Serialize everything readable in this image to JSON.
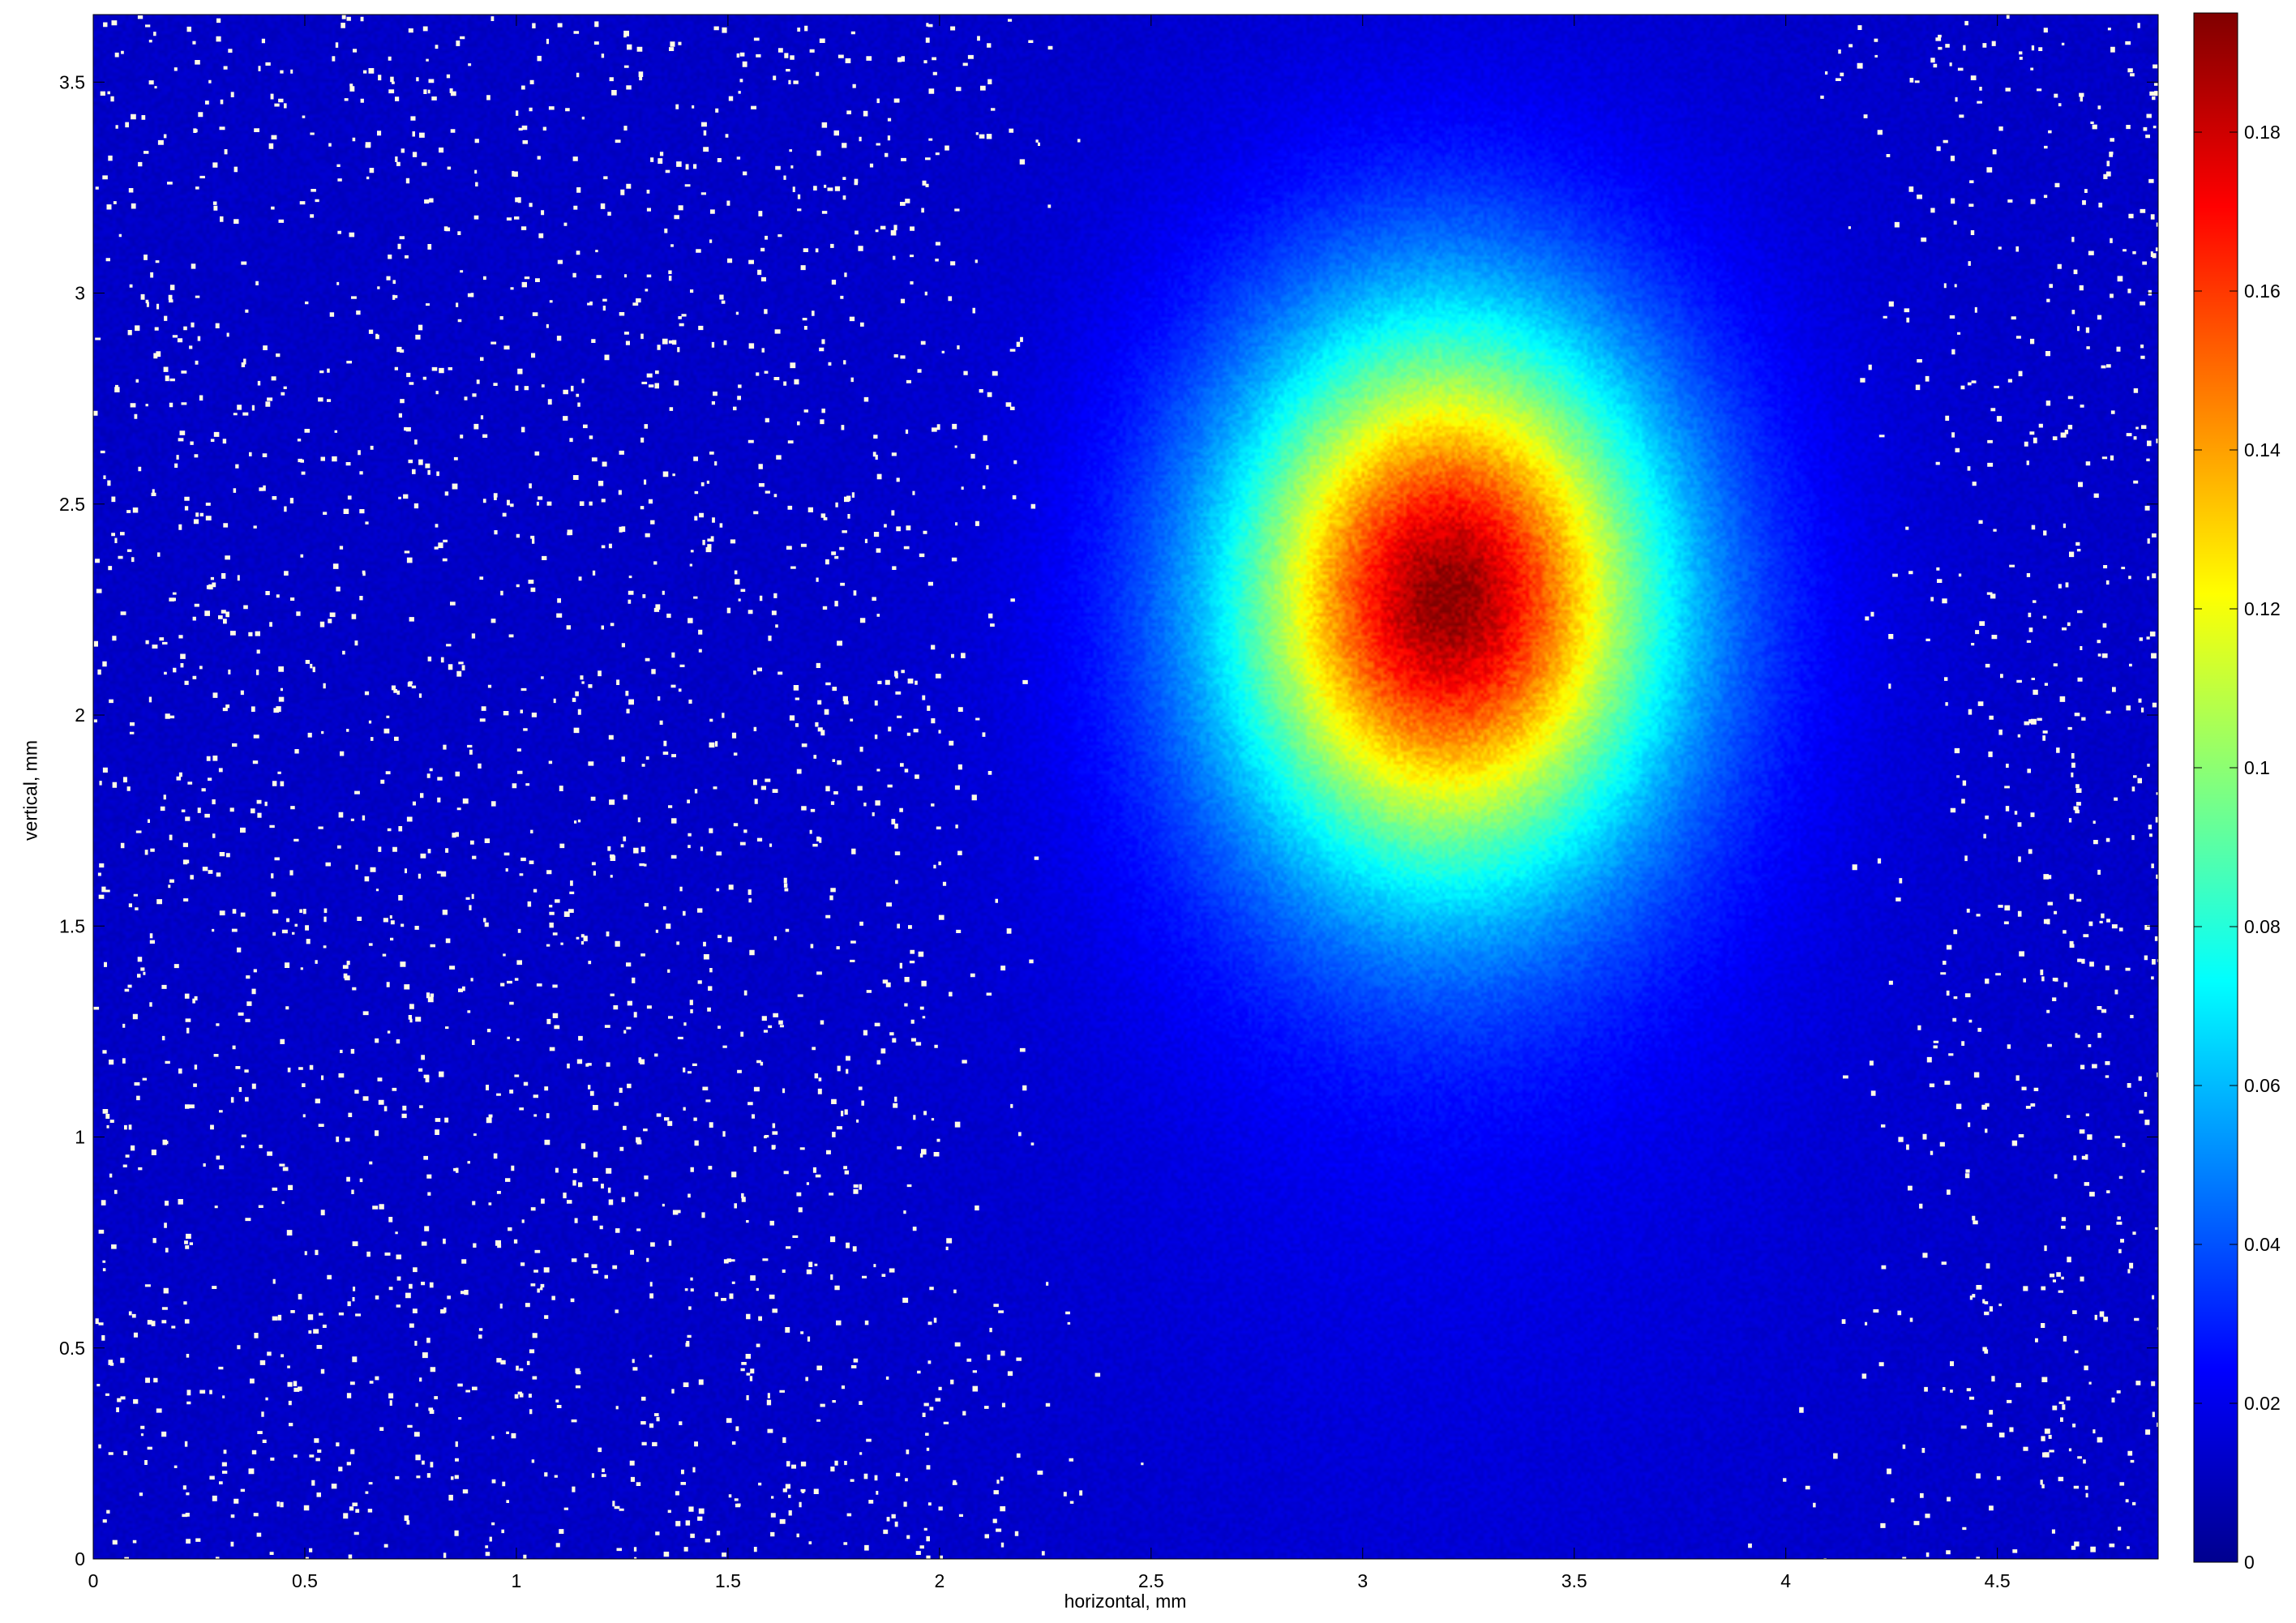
{
  "chart_data": {
    "type": "heatmap",
    "title": "",
    "xlabel": "horizontal, mm",
    "ylabel": "vertical, mm",
    "xlim": [
      0,
      4.88
    ],
    "ylim": [
      0,
      3.66
    ],
    "xticks": [
      0,
      0.5,
      1,
      1.5,
      2,
      2.5,
      3,
      3.5,
      4,
      4.5
    ],
    "yticks": [
      0,
      0.5,
      1,
      1.5,
      2,
      2.5,
      3,
      3.5
    ],
    "colormap": "jet",
    "colorbar": {
      "range": [
        0,
        0.195
      ],
      "ticks": [
        0,
        0.02,
        0.04,
        0.06,
        0.08,
        0.1,
        0.12,
        0.14,
        0.16,
        0.18
      ],
      "location": "right"
    },
    "spot": {
      "center_x_mm": 3.2,
      "center_y_mm": 2.28,
      "sigma_x_mm": 0.33,
      "sigma_y_mm": 0.42,
      "peak_value": 0.19,
      "background_value": 0.01
    },
    "noise": "white speckles (saturated/masked pixels) scattered over the low-intensity background, mostly at left and right edges",
    "grid": false
  }
}
